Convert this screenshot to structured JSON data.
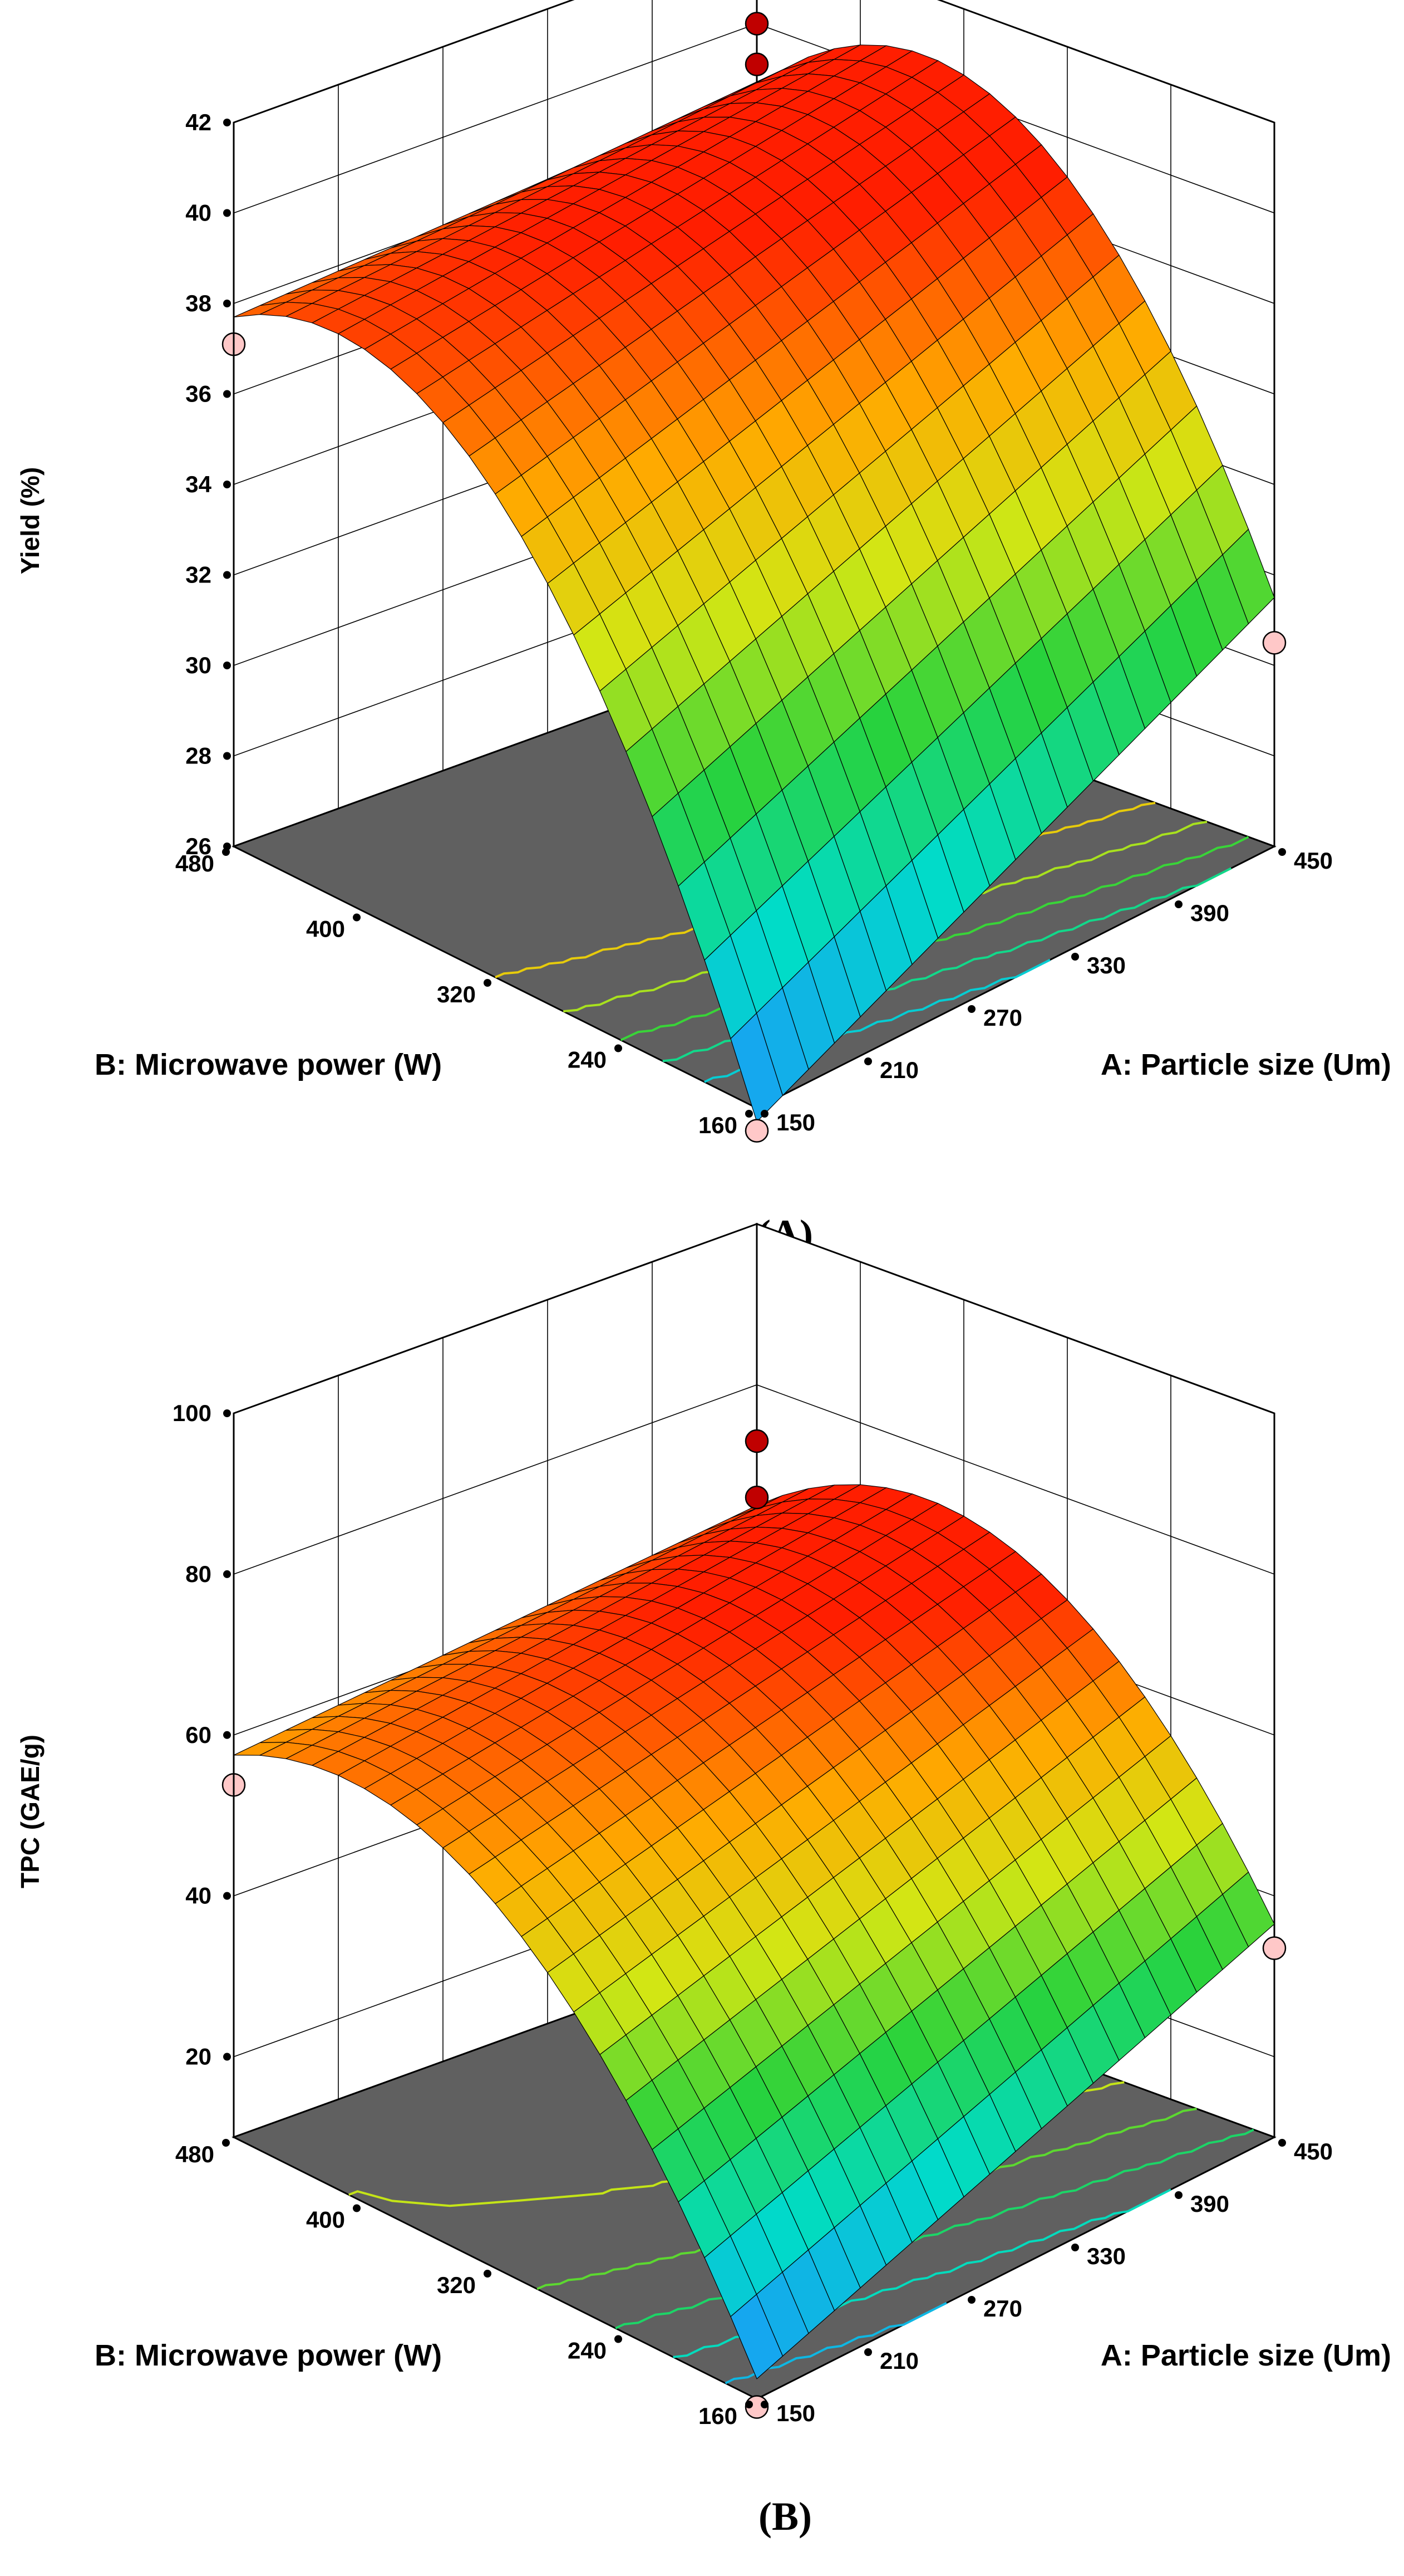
{
  "chart_data": [
    {
      "type": "surface",
      "panel_label": "(A)",
      "zlabel": "Yield (%)",
      "xlabel": "A: Particle size (Um)",
      "ylabel": "B: Microwave power (W)",
      "x_ticks": [
        "150",
        "210",
        "270",
        "330",
        "390",
        "450"
      ],
      "y_ticks": [
        "160",
        "240",
        "320",
        "400",
        "480"
      ],
      "z_ticks": [
        "26",
        "28",
        "30",
        "32",
        "34",
        "36",
        "38",
        "40",
        "42"
      ],
      "xlim": [
        150,
        450
      ],
      "ylim": [
        160,
        480
      ],
      "zlim": [
        26,
        42
      ],
      "surface_corners": {
        "a150_b160": 25.7,
        "a450_b160": 31.5,
        "a150_b480": 37.7,
        "a450_b480": 38.6
      },
      "surface_peak": {
        "a": 450,
        "b": 400,
        "yield": 39.2
      },
      "design_points": [
        {
          "a": 150,
          "b": 160,
          "value": 25.5,
          "side": "below"
        },
        {
          "a": 450,
          "b": 160,
          "value": 30.5,
          "side": "below"
        },
        {
          "a": 150,
          "b": 480,
          "value": 37.1,
          "side": "below"
        },
        {
          "a": 450,
          "b": 480,
          "value": 40.0,
          "side": "above"
        },
        {
          "a": 450,
          "b": 480,
          "value": 39.1,
          "side": "above"
        }
      ],
      "colors": {
        "low": "#1e90ff",
        "mid": "#32cd32",
        "high": "#ff2000",
        "floor": "#606060"
      }
    },
    {
      "type": "surface",
      "panel_label": "(B)",
      "zlabel": "TPC (GAE/g)",
      "xlabel": "A: Particle size (Um)",
      "ylabel": "B: Microwave power (W)",
      "x_ticks": [
        "150",
        "210",
        "270",
        "330",
        "390",
        "450"
      ],
      "y_ticks": [
        "160",
        "240",
        "320",
        "400",
        "480"
      ],
      "z_ticks": [
        "20",
        "40",
        "60",
        "80",
        "100"
      ],
      "xlim": [
        150,
        450
      ],
      "ylim": [
        160,
        480
      ],
      "zlim": [
        10,
        100
      ],
      "surface_corners": {
        "a150_b160": 12.5,
        "a450_b160": 36.5,
        "a150_b480": 57.5,
        "a450_b480": 65.0
      },
      "surface_peak": {
        "a": 450,
        "b": 400,
        "yield": 68.5
      },
      "design_points": [
        {
          "a": 150,
          "b": 160,
          "value": 9.0,
          "side": "below"
        },
        {
          "a": 450,
          "b": 160,
          "value": 33.5,
          "side": "below"
        },
        {
          "a": 150,
          "b": 480,
          "value": 53.8,
          "side": "below"
        },
        {
          "a": 450,
          "b": 480,
          "value": 73.0,
          "side": "above"
        },
        {
          "a": 450,
          "b": 480,
          "value": 66.0,
          "side": "above"
        }
      ],
      "colors": {
        "low": "#1e90ff",
        "mid": "#32cd32",
        "high": "#ff2000",
        "floor": "#606060"
      }
    }
  ]
}
